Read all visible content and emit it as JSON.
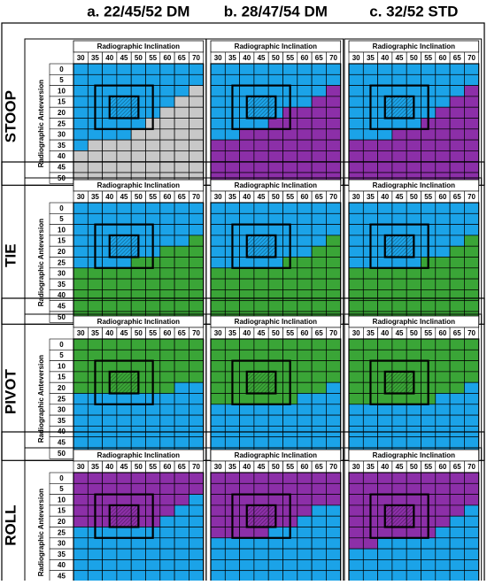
{
  "figure": {
    "col_titles": [
      "a. 22/45/52 DM",
      "b. 28/47/54 DM",
      "c. 32/52 STD"
    ],
    "row_titles": [
      "STOOP",
      "TIE",
      "PIVOT",
      "ROLL"
    ]
  },
  "chart_data": {
    "type": "heatmap",
    "xlabel": "Radiographic Inclination",
    "ylabel": "Radiographic Anteversion",
    "x": [
      30,
      35,
      40,
      45,
      50,
      55,
      60,
      65,
      70
    ],
    "y": [
      0,
      5,
      10,
      15,
      20,
      25,
      30,
      35,
      40,
      45,
      50
    ],
    "colors": {
      "B": "#1BA3E8",
      "G": "#C8C8C8",
      "N": "#3AA537",
      "P": "#8C2FA8"
    },
    "overlays": {
      "outer_box": {
        "inclination": [
          35,
          55
        ],
        "anteversion": [
          10,
          25
        ]
      },
      "inner_box": {
        "inclination": [
          40,
          45
        ],
        "anteversion": [
          15,
          20
        ]
      }
    },
    "panels": [
      {
        "row": "STOOP",
        "col": "a. 22/45/52 DM",
        "grid": [
          "BBBBBBBBB",
          "BBBBBBBBB",
          "BBBBBBBBG",
          "BBBBBBBGG",
          "BBBBBBGGG",
          "BBBBBGGGG",
          "BBBBGGGGG",
          "BGGGGGGGG",
          "GGGGGGGGG",
          "GGGGGGGGG",
          "GGGGGGGGG"
        ]
      },
      {
        "row": "STOOP",
        "col": "b. 28/47/54 DM",
        "grid": [
          "BBBBBBBBB",
          "BBBBBBBBB",
          "BBBBBBBBP",
          "BBBBBBBPP",
          "BBBBBPPPP",
          "BBBBPPPPP",
          "BBPPPPPPP",
          "PPPPPPPPP",
          "PPPPPPPPP",
          "PPPPPPPPP",
          "PPPPPPPPP"
        ]
      },
      {
        "row": "STOOP",
        "col": "c. 32/52 STD",
        "grid": [
          "BBBBBBBBB",
          "BBBBBBBBB",
          "BBBBBBBBP",
          "BBBBBBBPP",
          "BBBBBBPPP",
          "BBBBBPPPP",
          "BBBPPPPPP",
          "PPPPPPPPP",
          "PPPPPPPPP",
          "PPPPPPPPP",
          "PPPPPPPPP"
        ]
      },
      {
        "row": "TIE",
        "col": "a. 22/45/52 DM",
        "grid": [
          "BBBBBBBBB",
          "BBBBBBBBB",
          "BBBBBBBBB",
          "BBBBBBBBN",
          "BBBBBBNNN",
          "BBBBNNNNN",
          "NNNNNNNNN",
          "NNNNNNNNN",
          "NNNNNNNNN",
          "NNNNNNNNN",
          "NNNNNNNNN"
        ]
      },
      {
        "row": "TIE",
        "col": "b. 28/47/54 DM",
        "grid": [
          "BBBBBBBBB",
          "BBBBBBBBB",
          "BBBBBBBBB",
          "BBBBBBBBN",
          "BBBBBBBNN",
          "BBBBBNNNN",
          "NNNNNNNNN",
          "NNNNNNNNN",
          "NNNNNNNNN",
          "NNNNNNNNN",
          "NNNNNNNNN"
        ]
      },
      {
        "row": "TIE",
        "col": "c. 32/52 STD",
        "grid": [
          "BBBBBBBBB",
          "BBBBBBBBB",
          "BBBBBBBBB",
          "BBBBBBBBN",
          "BBBBBBBNN",
          "BBBBBNNNN",
          "NNNNNNNNN",
          "NNNNNNNNN",
          "NNNNNNNNN",
          "NNNNNNNNN",
          "NNNNNNNNN"
        ]
      },
      {
        "row": "PIVOT",
        "col": "a. 22/45/52 DM",
        "grid": [
          "NNNNNNNNN",
          "NNNNNNNNN",
          "NNNNNNNNN",
          "NNNNNNNNN",
          "NNNNNNNBB",
          "BBBBBBBBB",
          "BBBBBBBBB",
          "BBBBBBBBB",
          "BBBBBBBBB",
          "BBBBBBBBB",
          "BBBBBBBBB"
        ]
      },
      {
        "row": "PIVOT",
        "col": "b. 28/47/54 DM",
        "grid": [
          "NNNNNNNNN",
          "NNNNNNNNN",
          "NNNNNNNNN",
          "NNNNNNNNN",
          "NNNNNNNNB",
          "NNNNNNBBB",
          "BBBBBBBBB",
          "BBBBBBBBB",
          "BBBBBBBBB",
          "BBBBBBBBB",
          "BBBBBBBBB"
        ]
      },
      {
        "row": "PIVOT",
        "col": "c. 32/52 STD",
        "grid": [
          "NNNNNNNNN",
          "NNNNNNNNN",
          "NNNNNNNNN",
          "NNNNNNNNN",
          "NNNNNNNNB",
          "NNNNNNBBB",
          "BBBBBBBBB",
          "BBBBBBBBB",
          "BBBBBBBBB",
          "BBBBBBBBB",
          "BBBBBBBBB"
        ]
      },
      {
        "row": "ROLL",
        "col": "a. 22/45/52 DM",
        "grid": [
          "PPPPPPPPP",
          "PPPPPPPPP",
          "PPPPPPPPB",
          "PPPPPPPBB",
          "PPPPPPBBB",
          "BBBBBBBBB",
          "BBBBBBBBB",
          "BBBBBBBBB",
          "BBBBBBBBB",
          "BBBBBBBBB",
          "BBBBBBBBB"
        ]
      },
      {
        "row": "ROLL",
        "col": "b. 28/47/54 DM",
        "grid": [
          "PPPPPPPPP",
          "PPPPPPPPP",
          "PPPPPPPPP",
          "PPPPPPPBB",
          "PPPPPPBBB",
          "PPPPBBBBB",
          "BBBBBBBBB",
          "BBBBBBBBB",
          "BBBBBBBBB",
          "BBBBBBBBB",
          "BBBBBBBBB"
        ]
      },
      {
        "row": "ROLL",
        "col": "c. 32/52 STD",
        "grid": [
          "PPPPPPPPP",
          "PPPPPPPPP",
          "PPPPPPPPP",
          "PPPPPPPPB",
          "PPPPPPPBB",
          "PPPPPPBBB",
          "PPBBBBBBB",
          "BBBBBBBBB",
          "BBBBBBBBB",
          "BBBBBBBBB",
          "BBBBBBBBB"
        ]
      }
    ]
  }
}
